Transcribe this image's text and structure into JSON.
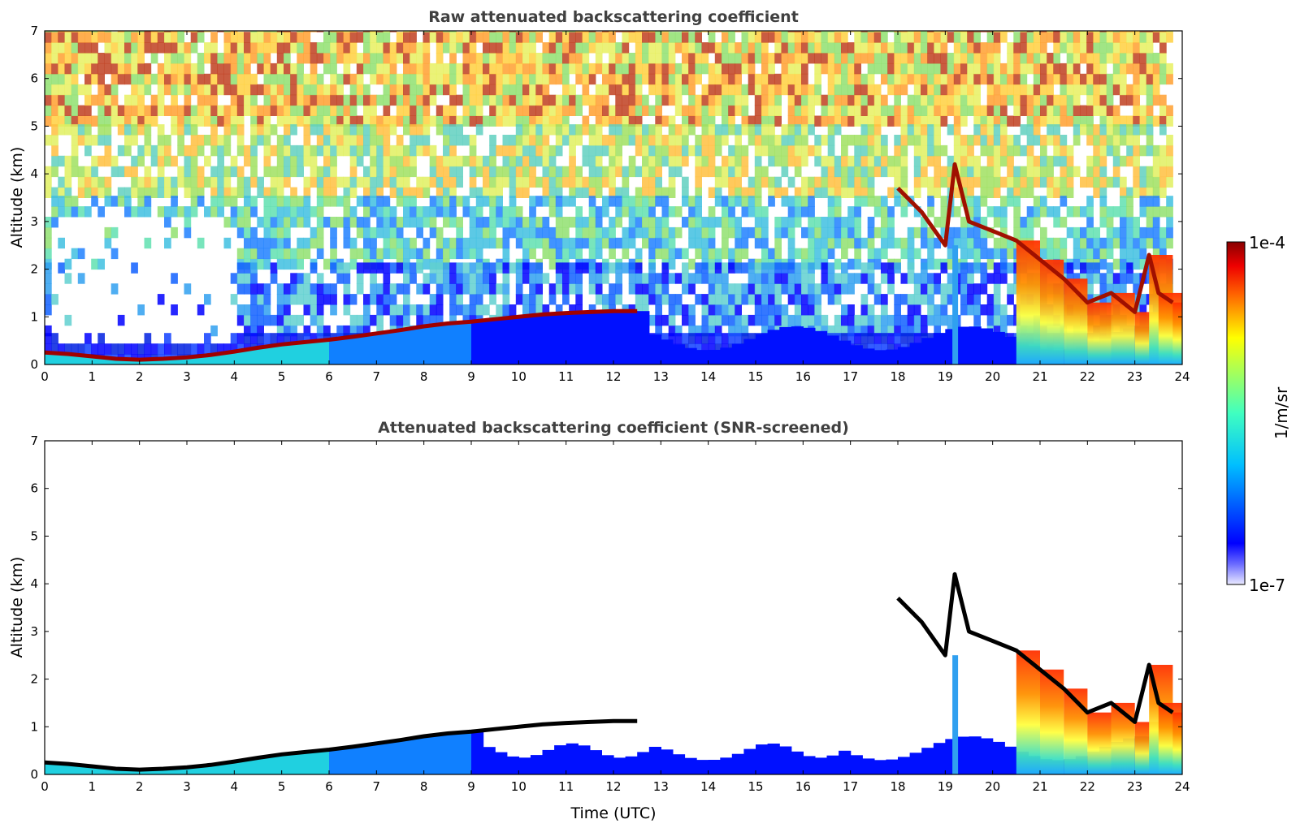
{
  "chart_data": [
    {
      "type": "heatmap",
      "title": "Raw attenuated backscattering coefficient",
      "xlabel": "",
      "ylabel": "Altitude (km)",
      "xlim": [
        0,
        24
      ],
      "ylim": [
        0,
        7
      ],
      "xticks": [
        "0",
        "1",
        "2",
        "3",
        "4",
        "5",
        "6",
        "7",
        "8",
        "9",
        "10",
        "11",
        "12",
        "13",
        "14",
        "15",
        "16",
        "17",
        "18",
        "19",
        "20",
        "21",
        "22",
        "23",
        "24"
      ],
      "yticks": [
        "0",
        "1",
        "2",
        "3",
        "4",
        "5",
        "6",
        "7"
      ],
      "color_scale": "log",
      "noise_screened": false,
      "boundary_layer_top": {
        "x": [
          0,
          0.5,
          1,
          1.5,
          2,
          2.5,
          3,
          3.5,
          4,
          4.5,
          5,
          5.5,
          6,
          6.5,
          7,
          7.5,
          8,
          8.5,
          9,
          9.5,
          10,
          10.5,
          11,
          11.5,
          12,
          12.5
        ],
        "y": [
          0.25,
          0.22,
          0.17,
          0.12,
          0.1,
          0.12,
          0.15,
          0.2,
          0.27,
          0.35,
          0.42,
          0.47,
          0.52,
          0.58,
          0.65,
          0.72,
          0.8,
          0.86,
          0.9,
          0.95,
          1.0,
          1.05,
          1.08,
          1.1,
          1.12,
          1.12
        ]
      },
      "cloud_layer": {
        "x": [
          18.0,
          18.5,
          19.0,
          19.2,
          19.5,
          20.0,
          20.5,
          21.0,
          21.5,
          22.0,
          22.5,
          23.0,
          23.3,
          23.5,
          23.8
        ],
        "y": [
          3.7,
          3.2,
          2.5,
          4.2,
          3.0,
          2.8,
          2.6,
          2.2,
          1.8,
          1.3,
          1.5,
          1.1,
          2.3,
          1.5,
          1.3
        ]
      }
    },
    {
      "type": "heatmap",
      "title": "Attenuated backscattering coefficient (SNR-screened)",
      "xlabel": "Time (UTC)",
      "ylabel": "Altitude (km)",
      "xlim": [
        0,
        24
      ],
      "ylim": [
        0,
        7
      ],
      "xticks": [
        "0",
        "1",
        "2",
        "3",
        "4",
        "5",
        "6",
        "7",
        "8",
        "9",
        "10",
        "11",
        "12",
        "13",
        "14",
        "15",
        "16",
        "17",
        "18",
        "19",
        "20",
        "21",
        "22",
        "23",
        "24"
      ],
      "yticks": [
        "0",
        "1",
        "2",
        "3",
        "4",
        "5",
        "6",
        "7"
      ],
      "color_scale": "log",
      "noise_screened": true,
      "boundary_layer_top": {
        "x": [
          0,
          0.5,
          1,
          1.5,
          2,
          2.5,
          3,
          3.5,
          4,
          4.5,
          5,
          5.5,
          6,
          6.5,
          7,
          7.5,
          8,
          8.5,
          9,
          9.5,
          10,
          10.5,
          11,
          11.5,
          12,
          12.5
        ],
        "y": [
          0.25,
          0.22,
          0.17,
          0.12,
          0.1,
          0.12,
          0.15,
          0.2,
          0.27,
          0.35,
          0.42,
          0.47,
          0.52,
          0.58,
          0.65,
          0.72,
          0.8,
          0.86,
          0.9,
          0.95,
          1.0,
          1.05,
          1.08,
          1.1,
          1.12,
          1.12
        ]
      },
      "cloud_layer": {
        "x": [
          18.0,
          18.5,
          19.0,
          19.2,
          19.5,
          20.0,
          20.5,
          21.0,
          21.5,
          22.0,
          22.5,
          23.0,
          23.3,
          23.5,
          23.8
        ],
        "y": [
          3.7,
          3.2,
          2.5,
          4.2,
          3.0,
          2.8,
          2.6,
          2.2,
          1.8,
          1.3,
          1.5,
          1.1,
          2.3,
          1.5,
          1.3
        ]
      }
    }
  ],
  "colorbar": {
    "label": "1/m/sr",
    "max_label": "1e-4",
    "min_label": "1e-7",
    "colors": [
      "#eaeaff",
      "#0000ff",
      "#00bfff",
      "#7fffaf",
      "#ffff00",
      "#ff8000",
      "#ff0000",
      "#8b0000"
    ]
  }
}
